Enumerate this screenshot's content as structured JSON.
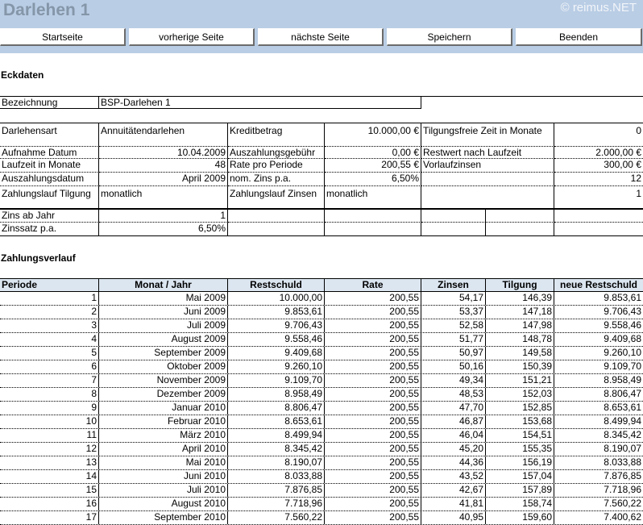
{
  "header": {
    "title": "Darlehen 1",
    "copyright": "© reimus.NET"
  },
  "nav": [
    {
      "label": "Startseite"
    },
    {
      "label": "vorherige Seite"
    },
    {
      "label": "nächste Seite"
    },
    {
      "label": "Speichern"
    },
    {
      "label": "Beenden"
    }
  ],
  "eckdaten": {
    "heading": "Eckdaten",
    "bezeichnung_label": "Bezeichnung",
    "bezeichnung": "BSP-Darlehen 1",
    "darlehensart_label": "Darlehensart",
    "darlehensart": "Annuitätendarlehen",
    "kreditbetrag_label": "Kreditbetrag",
    "kreditbetrag": "10.000,00 €",
    "tilgungsfrei_label": "Tilgungsfreie Zeit in Monate",
    "tilgungsfrei": "0",
    "aufnahme_label": "Aufnahme Datum",
    "aufnahme": "10.04.2009",
    "gebuehr_label": "Auszahlungsgebühr",
    "gebuehr": "0,00 €",
    "restwert_label": "Restwert nach Laufzeit",
    "restwert": "2.000,00 €",
    "laufzeit_label": "Laufzeit in Monate",
    "laufzeit": "48",
    "rate_label": "Rate pro Periode",
    "rate": "200,55 €",
    "vorlauf_label": "Vorlaufzinsen",
    "vorlauf": "300,00 €",
    "auszahlung_label": "Auszahlungsdatum",
    "auszahlung": "April 2009",
    "nomzins_label": "nom. Zins p.a.",
    "nomzins": "6,50%",
    "extra1": "12",
    "zl_tilgung_label": "Zahlungslauf Tilgung",
    "zl_tilgung": "monatlich",
    "zl_zinsen_label": "Zahlungslauf Zinsen",
    "zl_zinsen": "monatlich",
    "extra2": "1",
    "zins_ab_label": "Zins ab Jahr",
    "zins_ab": "1",
    "zinssatz_label": "Zinssatz p.a.",
    "zinssatz": "6,50%"
  },
  "zahlungsverlauf": {
    "heading": "Zahlungsverlauf",
    "columns": [
      "Periode",
      "Monat / Jahr",
      "Restschuld",
      "Rate",
      "Zinsen",
      "Tilgung",
      "neue Restschuld"
    ],
    "rows": [
      [
        "1",
        "Mai 2009",
        "10.000,00",
        "200,55",
        "54,17",
        "146,39",
        "9.853,61"
      ],
      [
        "2",
        "Juni 2009",
        "9.853,61",
        "200,55",
        "53,37",
        "147,18",
        "9.706,43"
      ],
      [
        "3",
        "Juli 2009",
        "9.706,43",
        "200,55",
        "52,58",
        "147,98",
        "9.558,46"
      ],
      [
        "4",
        "August 2009",
        "9.558,46",
        "200,55",
        "51,77",
        "148,78",
        "9.409,68"
      ],
      [
        "5",
        "September 2009",
        "9.409,68",
        "200,55",
        "50,97",
        "149,58",
        "9.260,10"
      ],
      [
        "6",
        "Oktober 2009",
        "9.260,10",
        "200,55",
        "50,16",
        "150,39",
        "9.109,70"
      ],
      [
        "7",
        "November 2009",
        "9.109,70",
        "200,55",
        "49,34",
        "151,21",
        "8.958,49"
      ],
      [
        "8",
        "Dezember 2009",
        "8.958,49",
        "200,55",
        "48,53",
        "152,03",
        "8.806,47"
      ],
      [
        "9",
        "Januar 2010",
        "8.806,47",
        "200,55",
        "47,70",
        "152,85",
        "8.653,61"
      ],
      [
        "10",
        "Februar 2010",
        "8.653,61",
        "200,55",
        "46,87",
        "153,68",
        "8.499,94"
      ],
      [
        "11",
        "März 2010",
        "8.499,94",
        "200,55",
        "46,04",
        "154,51",
        "8.345,42"
      ],
      [
        "12",
        "April 2010",
        "8.345,42",
        "200,55",
        "45,20",
        "155,35",
        "8.190,07"
      ],
      [
        "13",
        "Mai 2010",
        "8.190,07",
        "200,55",
        "44,36",
        "156,19",
        "8.033,88"
      ],
      [
        "14",
        "Juni 2010",
        "8.033,88",
        "200,55",
        "43,52",
        "157,04",
        "7.876,85"
      ],
      [
        "15",
        "Juli 2010",
        "7.876,85",
        "200,55",
        "42,67",
        "157,89",
        "7.718,96"
      ],
      [
        "16",
        "August 2010",
        "7.718,96",
        "200,55",
        "41,81",
        "158,74",
        "7.560,22"
      ],
      [
        "17",
        "September 2010",
        "7.560,22",
        "200,55",
        "40,95",
        "159,60",
        "7.400,62"
      ]
    ]
  }
}
